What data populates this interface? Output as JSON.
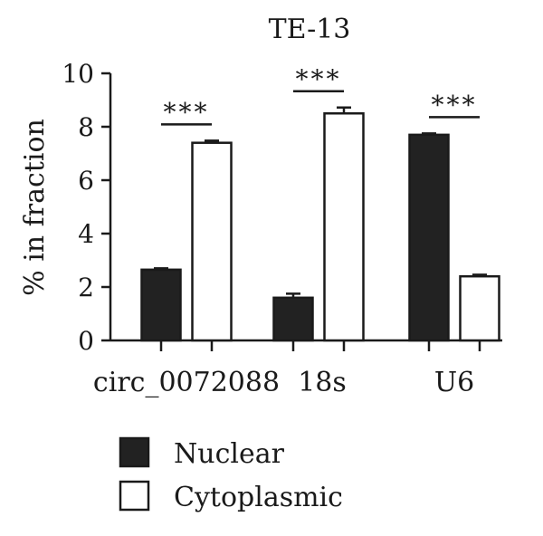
{
  "chart_data": {
    "type": "bar",
    "title": "TE-13",
    "ylabel": "% in fraction",
    "xlabel": "",
    "ylim": [
      0,
      10
    ],
    "yticks": [
      0,
      2,
      4,
      6,
      8,
      10
    ],
    "categories": [
      "circ_0072088",
      "18s",
      "U6"
    ],
    "series": [
      {
        "name": "Nuclear",
        "color": "#222222",
        "values": [
          2.65,
          1.6,
          7.7
        ],
        "errors": [
          0.05,
          0.15,
          0.05
        ]
      },
      {
        "name": "Cytoplasmic",
        "color": "#ffffff",
        "values": [
          7.4,
          8.5,
          2.4
        ],
        "errors": [
          0.08,
          0.22,
          0.06
        ]
      }
    ],
    "significance": [
      "***",
      "***",
      "***"
    ],
    "legend_position": "bottom-left",
    "grid": false
  }
}
